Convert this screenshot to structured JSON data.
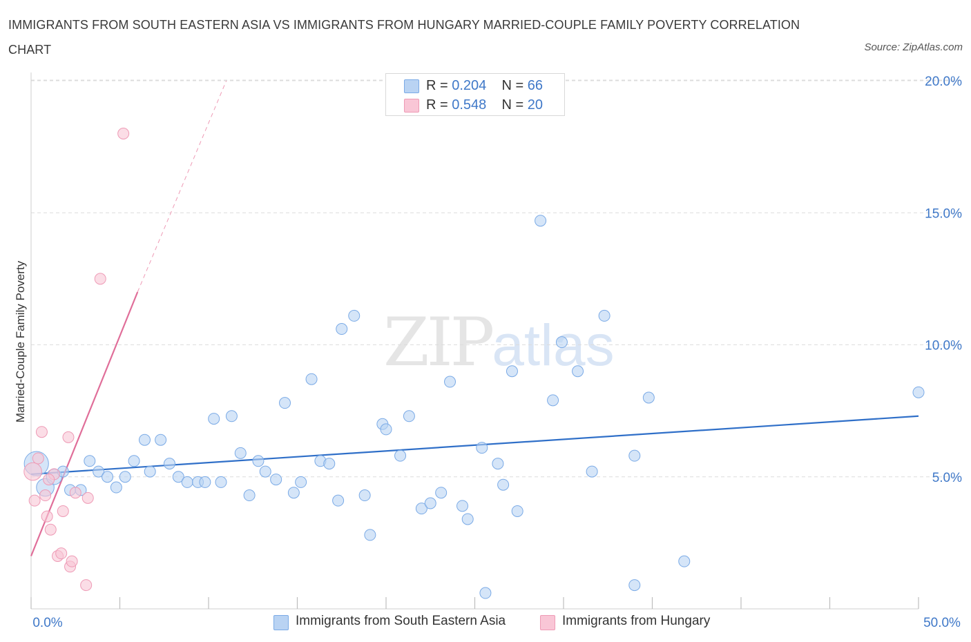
{
  "title": "IMMIGRANTS FROM SOUTH EASTERN ASIA VS IMMIGRANTS FROM HUNGARY MARRIED-COUPLE FAMILY POVERTY CORRELATION CHART",
  "source": "Source: ZipAtlas.com",
  "watermark": {
    "part1": "ZIP",
    "part2": "atlas"
  },
  "colors": {
    "blue_fill": "#b9d3f3",
    "blue_stroke": "#7aaae6",
    "blue_line": "#2f6fc8",
    "pink_fill": "#f9c6d6",
    "pink_stroke": "#ee9ab5",
    "pink_line": "#e06e99",
    "axis_text": "#3f78c8",
    "grid": "#dcdcdc"
  },
  "legend_top": [
    {
      "r_label": "R = ",
      "r_value": "0.204",
      "n_label": "N = ",
      "n_value": "66"
    },
    {
      "r_label": "R = ",
      "r_value": "0.548",
      "n_label": "N = ",
      "n_value": "20"
    }
  ],
  "legend_bottom": [
    "Immigrants from South Eastern Asia",
    "Immigrants from Hungary"
  ],
  "chart_data": {
    "type": "scatter",
    "title": "IMMIGRANTS FROM SOUTH EASTERN ASIA VS IMMIGRANTS FROM HUNGARY MARRIED-COUPLE FAMILY POVERTY CORRELATION CHART",
    "xlabel": "",
    "ylabel": "Married-Couple Family Poverty",
    "xlim": [
      0,
      50
    ],
    "ylim": [
      0,
      20
    ],
    "x_tick_labels": [
      "0.0%",
      "50.0%"
    ],
    "y_ticks": [
      5,
      10,
      15,
      20
    ],
    "y_tick_labels": [
      "5.0%",
      "10.0%",
      "15.0%",
      "20.0%"
    ],
    "grid": "horizontal dashed",
    "series": [
      {
        "name": "Immigrants from South Eastern Asia",
        "color": "#7aaae6",
        "trend": {
          "x": [
            0,
            50
          ],
          "y": [
            5.1,
            7.3
          ]
        },
        "points": [
          [
            0.3,
            5.5,
            2.2
          ],
          [
            0.8,
            4.6,
            1.6
          ],
          [
            1.3,
            5.0,
            1.4
          ],
          [
            1.8,
            5.2,
            1
          ],
          [
            2.2,
            4.5,
            1
          ],
          [
            2.8,
            4.5,
            1
          ],
          [
            3.3,
            5.6,
            1
          ],
          [
            3.8,
            5.2,
            1
          ],
          [
            4.3,
            5.0,
            1
          ],
          [
            4.8,
            4.6,
            1
          ],
          [
            5.3,
            5.0,
            1
          ],
          [
            5.8,
            5.6,
            1
          ],
          [
            6.4,
            6.4,
            1
          ],
          [
            6.7,
            5.2,
            1
          ],
          [
            7.3,
            6.4,
            1
          ],
          [
            7.8,
            5.5,
            1
          ],
          [
            8.3,
            5.0,
            1
          ],
          [
            8.8,
            4.8,
            1
          ],
          [
            9.4,
            4.8,
            1
          ],
          [
            9.8,
            4.8,
            1
          ],
          [
            10.3,
            7.2,
            1
          ],
          [
            10.7,
            4.8,
            1
          ],
          [
            11.3,
            7.3,
            1
          ],
          [
            11.8,
            5.9,
            1
          ],
          [
            12.3,
            4.3,
            1
          ],
          [
            12.8,
            5.6,
            1
          ],
          [
            13.2,
            5.2,
            1
          ],
          [
            13.8,
            4.9,
            1
          ],
          [
            14.3,
            7.8,
            1
          ],
          [
            14.8,
            4.4,
            1
          ],
          [
            15.2,
            4.8,
            1
          ],
          [
            15.8,
            8.7,
            1
          ],
          [
            16.3,
            5.6,
            1
          ],
          [
            16.8,
            5.5,
            1
          ],
          [
            17.3,
            4.1,
            1
          ],
          [
            17.5,
            10.6,
            1
          ],
          [
            18.2,
            11.1,
            1
          ],
          [
            18.8,
            4.3,
            1
          ],
          [
            19.1,
            2.8,
            1
          ],
          [
            19.8,
            7.0,
            1
          ],
          [
            20.0,
            6.8,
            1
          ],
          [
            20.8,
            5.8,
            1
          ],
          [
            21.3,
            7.3,
            1
          ],
          [
            22.0,
            3.8,
            1
          ],
          [
            22.5,
            4.0,
            1
          ],
          [
            23.1,
            4.4,
            1
          ],
          [
            23.6,
            8.6,
            1
          ],
          [
            24.3,
            3.9,
            1
          ],
          [
            24.6,
            3.4,
            1
          ],
          [
            25.4,
            6.1,
            1
          ],
          [
            25.6,
            0.6,
            1
          ],
          [
            26.3,
            5.5,
            1
          ],
          [
            26.6,
            4.7,
            1
          ],
          [
            27.1,
            9.0,
            1
          ],
          [
            27.4,
            3.7,
            1
          ],
          [
            28.7,
            14.7,
            1
          ],
          [
            29.4,
            7.9,
            1
          ],
          [
            29.9,
            10.1,
            1
          ],
          [
            30.8,
            9.0,
            1
          ],
          [
            31.6,
            5.2,
            1
          ],
          [
            32.3,
            11.1,
            1
          ],
          [
            34.0,
            5.8,
            1
          ],
          [
            34.0,
            0.9,
            1
          ],
          [
            34.8,
            8.0,
            1
          ],
          [
            36.8,
            1.8,
            1
          ],
          [
            50.0,
            8.2,
            1
          ]
        ]
      },
      {
        "name": "Immigrants from Hungary",
        "color": "#ee9ab5",
        "trend": {
          "x": [
            0,
            6.0
          ],
          "y": [
            2.0,
            12.0
          ]
        },
        "trend_extended": {
          "x": [
            6.0,
            11.0
          ],
          "y": [
            12.0,
            20.0
          ]
        },
        "points": [
          [
            0.1,
            5.2,
            1.6
          ],
          [
            0.2,
            4.1,
            1
          ],
          [
            0.4,
            5.7,
            1
          ],
          [
            0.6,
            6.7,
            1
          ],
          [
            0.8,
            4.3,
            1
          ],
          [
            0.9,
            3.5,
            1
          ],
          [
            1.1,
            3.0,
            1
          ],
          [
            1.3,
            5.1,
            1
          ],
          [
            1.5,
            2.0,
            1
          ],
          [
            1.7,
            2.1,
            1
          ],
          [
            1.8,
            3.7,
            1
          ],
          [
            2.1,
            6.5,
            1
          ],
          [
            2.2,
            1.6,
            1
          ],
          [
            2.3,
            1.8,
            1
          ],
          [
            2.5,
            4.4,
            1
          ],
          [
            3.1,
            0.9,
            1
          ],
          [
            3.2,
            4.2,
            1
          ],
          [
            3.9,
            12.5,
            1
          ],
          [
            5.2,
            18.0,
            1
          ],
          [
            1.0,
            4.9,
            1
          ]
        ]
      }
    ]
  }
}
